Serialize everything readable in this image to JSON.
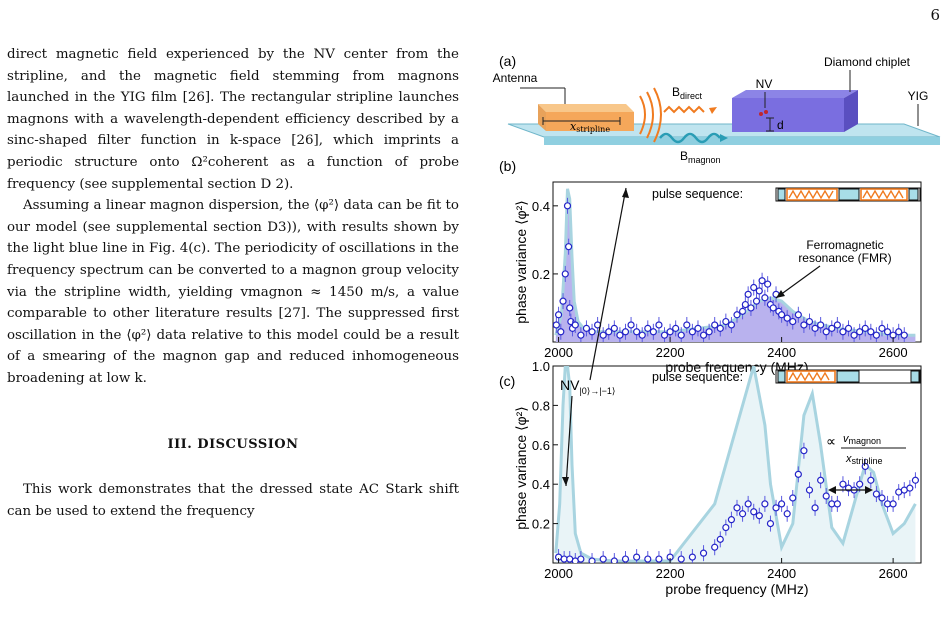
{
  "page_number": "6",
  "text": {
    "p1": "direct magnetic field experienced by the NV center from the stripline, and the magnetic field stemming from magnons launched in the YIG film [26]. The rectangular stripline launches magnons with a wavelength-dependent efficiency described by a sinc-shaped filter function in k-space [26], which imprints a periodic structure onto Ω²coherent as a function of probe frequency (see supplemental section D 2).",
    "p2": "Assuming a linear magnon dispersion, the ⟨φ²⟩ data can be fit to our model (see supplemental section D3)), with results shown by the light blue line in Fig. 4(c). The periodicity of oscillations in the frequency spectrum can be converted to a magnon group velocity via the stripline width, yielding vmagnon ≈ 1450 m/s, a value comparable to other literature results [27]. The suppressed first oscillation in the ⟨φ²⟩ data relative to this model could be a result of a smearing of the magnon gap and reduced inhomogeneous broadening at low k.",
    "heading": "III.   DISCUSSION",
    "p3": "This work demonstrates that the dressed state AC Stark shift can be used to extend the frequency"
  },
  "figure": {
    "panel_a": {
      "tag": "(a)",
      "antenna": "Antenna",
      "stripline": "x",
      "stripline_sub": "stripline",
      "bdirect": "B",
      "bdirect_sub": "direct",
      "bmagnon": "B",
      "bmagnon_sub": "magnon",
      "nv": "NV",
      "d": "d",
      "chiplet": "Diamond chiplet",
      "yig": "YIG"
    },
    "panel_b": {
      "tag": "(b)",
      "pulse": "pulse sequence:",
      "fmr1": "Ferromagnetic",
      "fmr2": "resonance (FMR)"
    },
    "panel_c": {
      "tag": "(c)",
      "pulse": "pulse sequence:",
      "nv": "NV",
      "nv_sub": "|0⟩→|−1⟩",
      "prop": "∝",
      "num": "v",
      "num_sub": "magnon",
      "den": "x",
      "den_sub": "stripline"
    },
    "colors": {
      "orange": "#f07b20",
      "teal": "#2a9db5",
      "purple": "#6e5fd0",
      "light_blue": "#a8d4e0",
      "points": "#2424c8"
    }
  },
  "chart_data": [
    {
      "type": "scatter",
      "title": "",
      "xlabel": "probe frequency (MHz)",
      "ylabel": "phase variance ⟨φ²⟩",
      "xlim": [
        1990,
        2650
      ],
      "ylim": [
        0,
        0.47
      ],
      "xticks": [
        2000,
        2200,
        2400,
        2600
      ],
      "yticks": [
        0.2,
        0.4
      ],
      "fit": {
        "x": [
          1995,
          2005,
          2012,
          2016,
          2020,
          2024,
          2028,
          2035,
          2045,
          2060,
          2100,
          2200,
          2300,
          2330,
          2360,
          2380,
          2400,
          2420,
          2450,
          2500,
          2550,
          2600,
          2640
        ],
        "y": [
          0.02,
          0.08,
          0.26,
          0.45,
          0.42,
          0.25,
          0.12,
          0.06,
          0.04,
          0.03,
          0.03,
          0.03,
          0.05,
          0.08,
          0.12,
          0.13,
          0.12,
          0.09,
          0.06,
          0.04,
          0.03,
          0.02,
          0.02
        ]
      },
      "points": {
        "x": [
          1996,
          2000,
          2004,
          2008,
          2012,
          2016,
          2018,
          2020,
          2022,
          2025,
          2030,
          2040,
          2050,
          2060,
          2070,
          2080,
          2090,
          2100,
          2110,
          2120,
          2130,
          2140,
          2150,
          2160,
          2170,
          2180,
          2190,
          2200,
          2210,
          2220,
          2230,
          2240,
          2250,
          2260,
          2270,
          2280,
          2290,
          2300,
          2310,
          2320,
          2330,
          2335,
          2340,
          2345,
          2350,
          2355,
          2360,
          2365,
          2370,
          2375,
          2380,
          2385,
          2390,
          2395,
          2400,
          2410,
          2420,
          2430,
          2440,
          2450,
          2460,
          2470,
          2480,
          2490,
          2500,
          2510,
          2520,
          2530,
          2540,
          2550,
          2560,
          2570,
          2580,
          2590,
          2600,
          2610,
          2620
        ],
        "y": [
          0.05,
          0.08,
          0.03,
          0.12,
          0.2,
          0.4,
          0.28,
          0.1,
          0.06,
          0.04,
          0.05,
          0.02,
          0.04,
          0.03,
          0.05,
          0.02,
          0.03,
          0.04,
          0.02,
          0.03,
          0.05,
          0.03,
          0.02,
          0.04,
          0.03,
          0.05,
          0.02,
          0.03,
          0.04,
          0.02,
          0.05,
          0.03,
          0.04,
          0.02,
          0.03,
          0.05,
          0.04,
          0.06,
          0.05,
          0.08,
          0.09,
          0.11,
          0.14,
          0.1,
          0.16,
          0.12,
          0.15,
          0.18,
          0.13,
          0.17,
          0.11,
          0.1,
          0.14,
          0.09,
          0.08,
          0.07,
          0.06,
          0.08,
          0.05,
          0.06,
          0.04,
          0.05,
          0.03,
          0.04,
          0.05,
          0.03,
          0.04,
          0.02,
          0.03,
          0.04,
          0.03,
          0.02,
          0.04,
          0.03,
          0.02,
          0.03,
          0.02
        ]
      }
    },
    {
      "type": "scatter",
      "title": "",
      "xlabel": "probe frequency (MHz)",
      "ylabel": "phase variance ⟨φ²⟩",
      "xlim": [
        1990,
        2650
      ],
      "ylim": [
        0,
        1.0
      ],
      "xticks": [
        2000,
        2200,
        2400,
        2600
      ],
      "yticks": [
        0.2,
        0.4,
        0.6,
        0.8,
        1.0
      ],
      "fit": {
        "x": [
          1995,
          2002,
          2008,
          2012,
          2016,
          2020,
          2024,
          2030,
          2040,
          2060,
          2100,
          2200,
          2280,
          2320,
          2350,
          2370,
          2380,
          2400,
          2420,
          2440,
          2455,
          2470,
          2490,
          2510,
          2530,
          2550,
          2565,
          2580,
          2600,
          2620,
          2640
        ],
        "y": [
          0.05,
          0.3,
          0.8,
          1.0,
          1.0,
          0.9,
          0.5,
          0.15,
          0.05,
          0.02,
          0.01,
          0.01,
          0.3,
          0.7,
          1.0,
          0.7,
          0.4,
          0.08,
          0.2,
          0.75,
          0.86,
          0.6,
          0.18,
          0.1,
          0.3,
          0.5,
          0.46,
          0.3,
          0.15,
          0.2,
          0.3
        ]
      },
      "points": {
        "x": [
          2000,
          2010,
          2020,
          2030,
          2040,
          2060,
          2080,
          2100,
          2120,
          2140,
          2160,
          2180,
          2200,
          2220,
          2240,
          2260,
          2280,
          2290,
          2300,
          2310,
          2320,
          2330,
          2340,
          2350,
          2360,
          2370,
          2380,
          2390,
          2400,
          2410,
          2420,
          2430,
          2440,
          2450,
          2460,
          2470,
          2480,
          2490,
          2500,
          2510,
          2520,
          2530,
          2540,
          2550,
          2560,
          2570,
          2580,
          2590,
          2600,
          2610,
          2620,
          2630,
          2640
        ],
        "y": [
          0.03,
          0.02,
          0.02,
          0.01,
          0.02,
          0.01,
          0.02,
          0.01,
          0.02,
          0.03,
          0.02,
          0.02,
          0.03,
          0.02,
          0.03,
          0.05,
          0.08,
          0.12,
          0.18,
          0.22,
          0.28,
          0.25,
          0.3,
          0.26,
          0.24,
          0.3,
          0.2,
          0.28,
          0.3,
          0.25,
          0.33,
          0.45,
          0.57,
          0.37,
          0.28,
          0.42,
          0.34,
          0.3,
          0.3,
          0.4,
          0.38,
          0.37,
          0.4,
          0.49,
          0.42,
          0.35,
          0.33,
          0.3,
          0.3,
          0.36,
          0.37,
          0.38,
          0.42
        ]
      }
    }
  ]
}
